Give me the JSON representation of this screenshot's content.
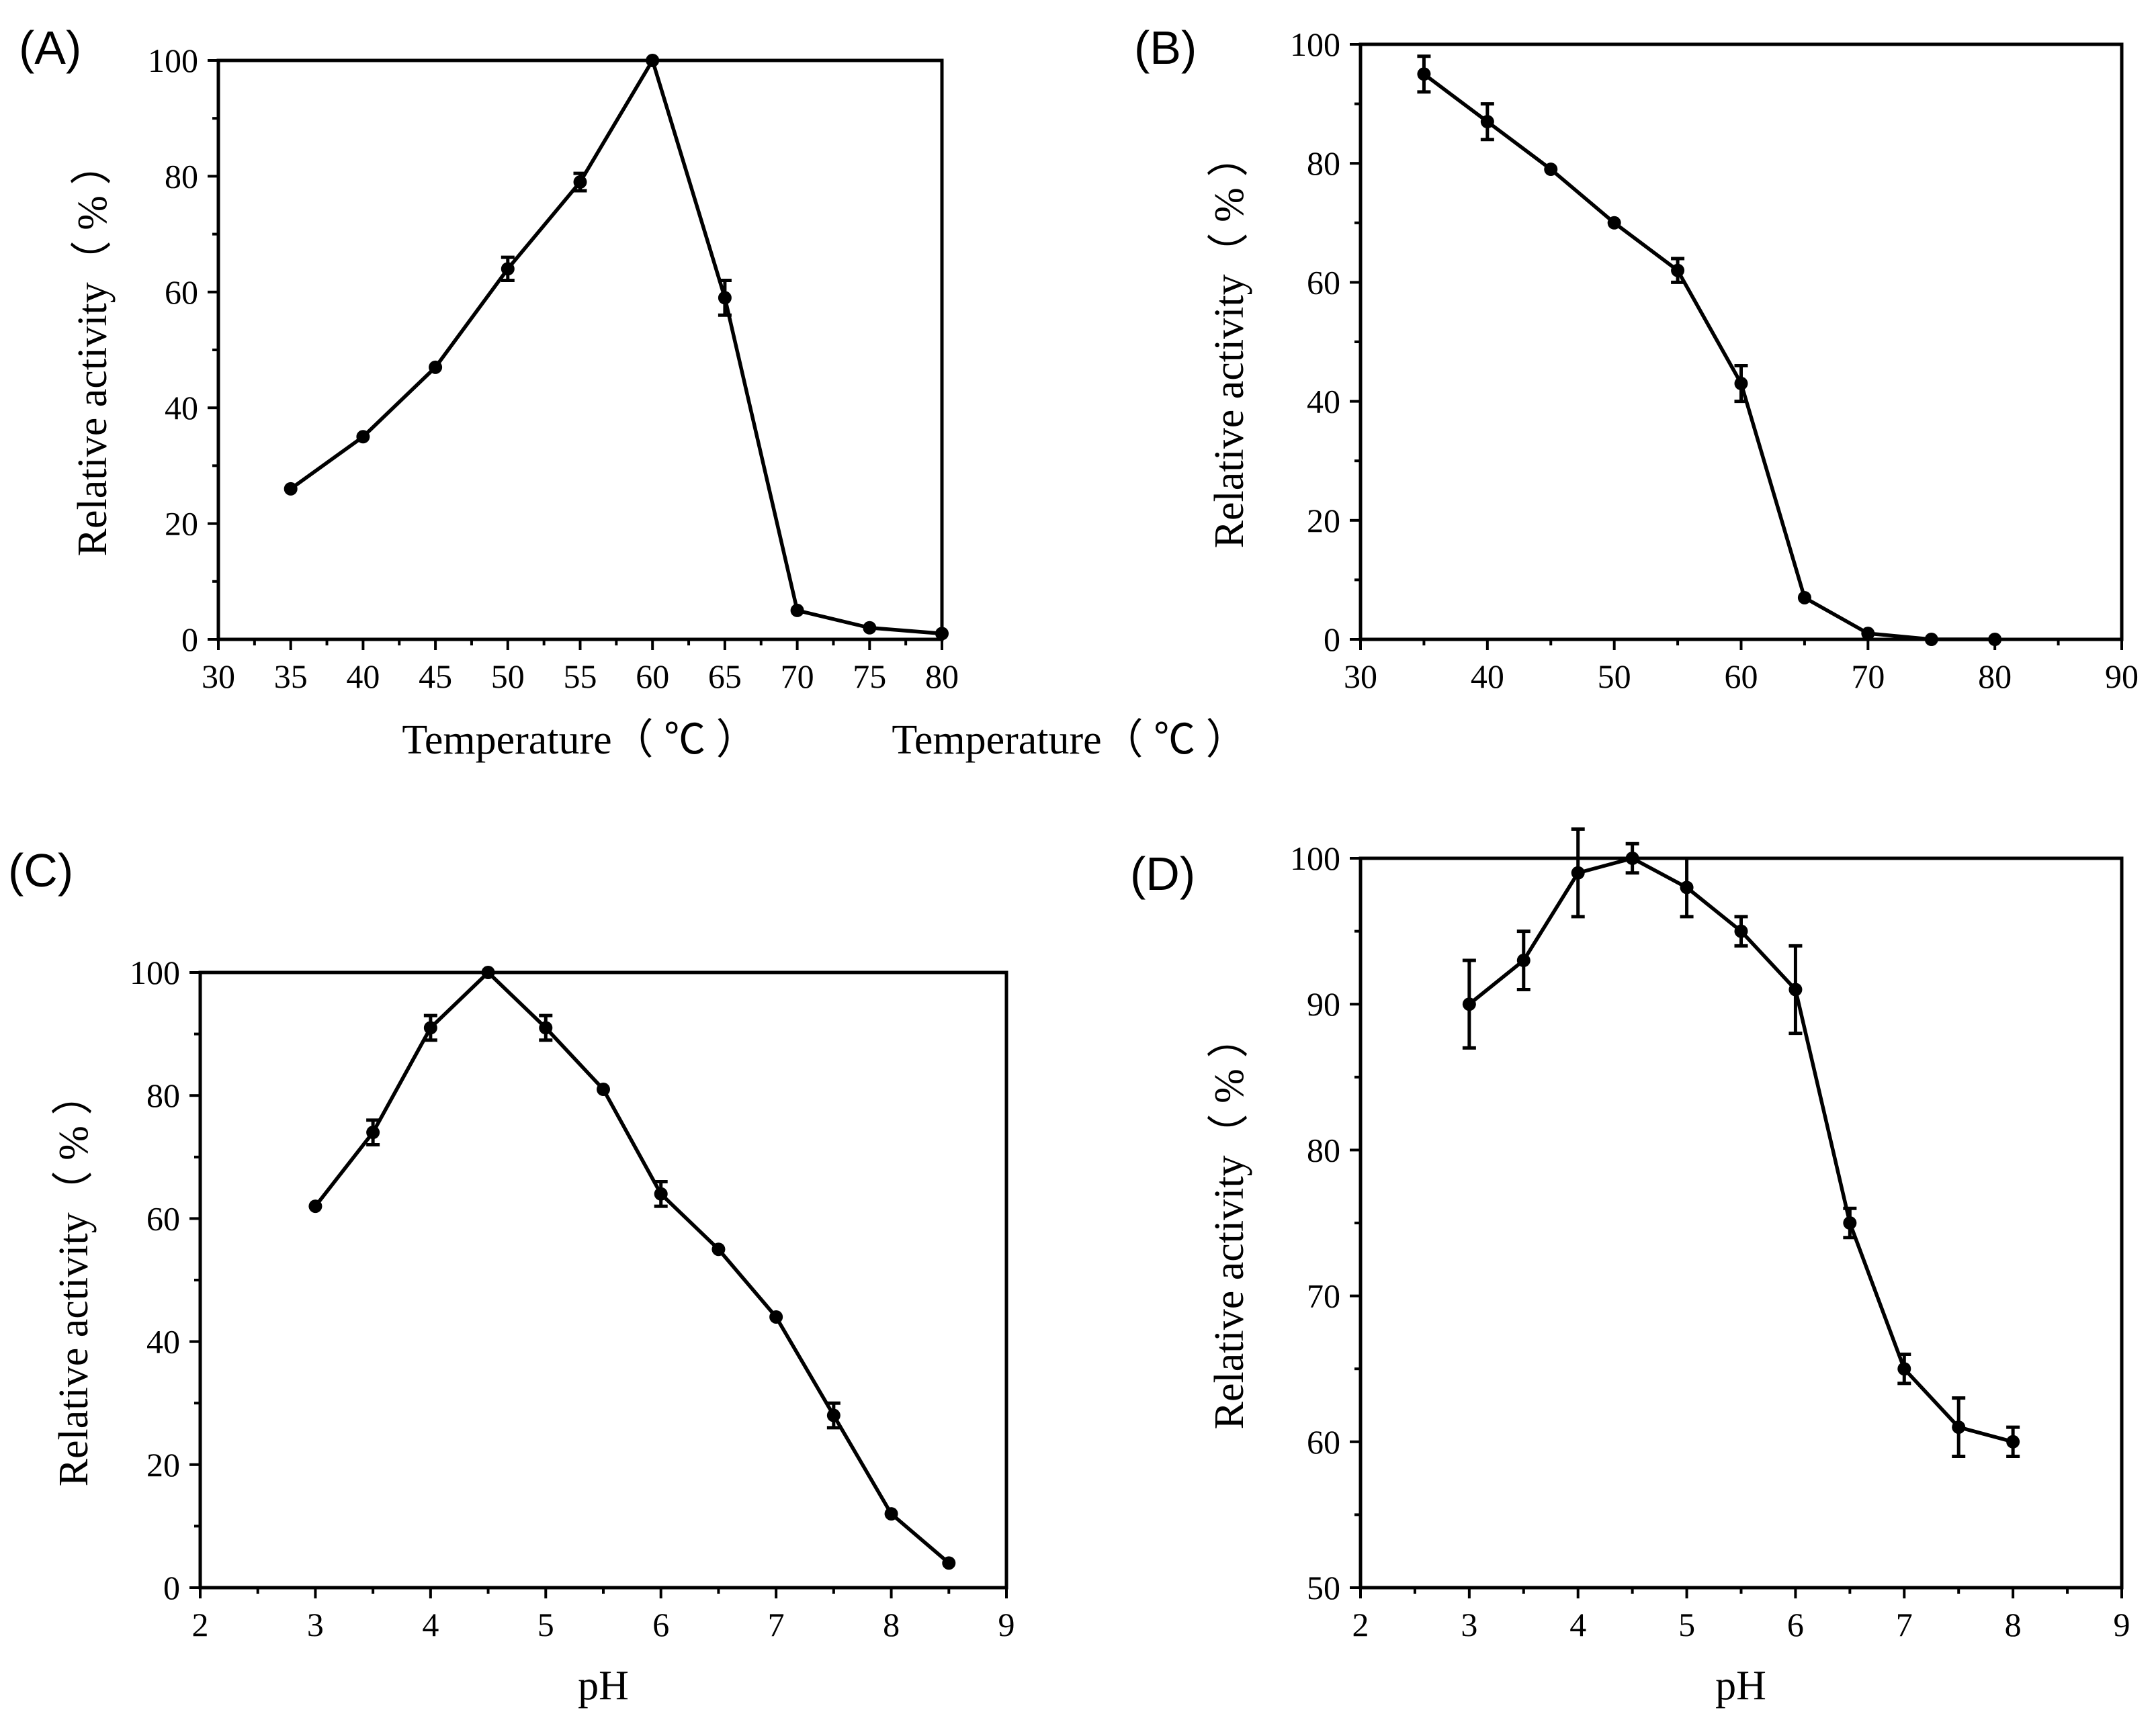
{
  "chart_data": [
    {
      "type": "line",
      "panel_label": "(A)",
      "xlabel": "Temperature（ ℃ ）",
      "ylabel": "Relative activity（ % ）",
      "xlim": [
        30,
        80
      ],
      "ylim": [
        0,
        100
      ],
      "xticks": [
        30,
        35,
        40,
        45,
        50,
        55,
        60,
        65,
        70,
        75,
        80
      ],
      "yticks": [
        0,
        20,
        40,
        60,
        80,
        100
      ],
      "x": [
        35,
        40,
        45,
        50,
        55,
        60,
        65,
        70,
        75,
        80
      ],
      "y": [
        26,
        35,
        47,
        64,
        79,
        100,
        59,
        5,
        2,
        1
      ],
      "error": [
        0,
        0,
        0,
        2,
        1.5,
        0,
        3,
        0,
        0,
        0
      ]
    },
    {
      "type": "line",
      "panel_label": "(B)",
      "xlabel": "Temperature（ ℃ ）",
      "ylabel": "Relative activity（ % ）",
      "xlim": [
        30,
        90
      ],
      "ylim": [
        0,
        100
      ],
      "xticks": [
        30,
        40,
        50,
        60,
        70,
        80,
        90
      ],
      "yticks": [
        0,
        20,
        40,
        60,
        80,
        100
      ],
      "x": [
        35,
        40,
        45,
        50,
        55,
        60,
        65,
        70,
        75,
        80
      ],
      "y": [
        95,
        87,
        79,
        70,
        62,
        43,
        7,
        1,
        0,
        0
      ],
      "error": [
        3,
        3,
        0,
        0,
        2,
        3,
        0,
        0,
        0,
        0
      ]
    },
    {
      "type": "line",
      "panel_label": "(C)",
      "xlabel": "pH",
      "ylabel": "Relative activity（ % ）",
      "xlim": [
        2,
        9
      ],
      "ylim": [
        0,
        100
      ],
      "xticks": [
        2,
        3,
        4,
        5,
        6,
        7,
        8,
        9
      ],
      "yticks": [
        0,
        20,
        40,
        60,
        80,
        100
      ],
      "x": [
        3,
        3.5,
        4,
        4.5,
        5,
        5.5,
        6,
        6.5,
        7,
        7.5,
        8,
        8.5
      ],
      "y": [
        62,
        74,
        91,
        100,
        91,
        81,
        64,
        55,
        44,
        28,
        12,
        4
      ],
      "error": [
        0,
        2,
        2,
        0,
        2,
        0,
        2,
        0,
        0,
        2,
        0,
        0
      ]
    },
    {
      "type": "line",
      "panel_label": "(D)",
      "xlabel": "pH",
      "ylabel": "Relative activity（ % ）",
      "xlim": [
        2,
        9
      ],
      "ylim": [
        50,
        100
      ],
      "xticks": [
        2,
        3,
        4,
        5,
        6,
        7,
        8,
        9
      ],
      "yticks": [
        50,
        60,
        70,
        80,
        90,
        100
      ],
      "x": [
        3,
        3.5,
        4,
        4.5,
        5,
        5.5,
        6,
        6.5,
        7,
        7.5,
        8
      ],
      "y": [
        90,
        93,
        99,
        100,
        98,
        95,
        91,
        75,
        65,
        61,
        60
      ],
      "error": [
        3,
        2,
        3,
        1,
        2,
        1,
        3,
        1,
        1,
        2,
        1
      ]
    }
  ]
}
